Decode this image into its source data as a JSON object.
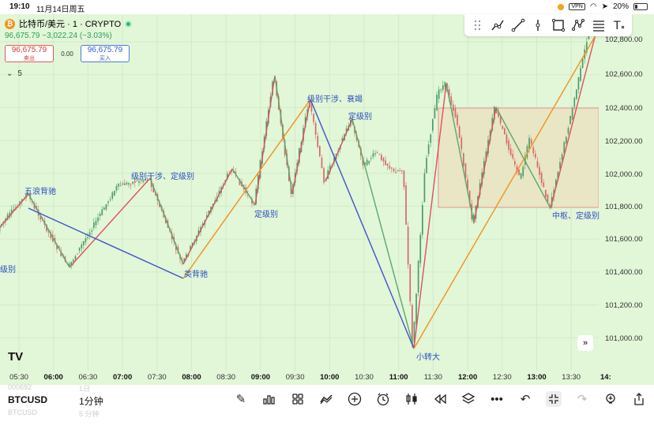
{
  "status": {
    "time": "19:10",
    "date": "11月14日周五",
    "battery": "20%"
  },
  "symbol": {
    "name": "比特币/美元 · 1 · CRYPTO",
    "coin_glyph": "₿",
    "price": "96,675.79",
    "change": "−3,022.24 (−3.03%)"
  },
  "trade": {
    "sell_price": "96,675.79",
    "sell_label": "卖出",
    "spread": "0.00",
    "buy_price": "96,675.79",
    "buy_label": "买入"
  },
  "collapse": {
    "icon": "chevron-down-icon",
    "count": "5"
  },
  "price_axis": [
    "102,800.00",
    "102,600.00",
    "102,400.00",
    "102,200.00",
    "102,000.00",
    "101,800.00",
    "101,600.00",
    "101,400.00",
    "101,200.00",
    "101,000.00"
  ],
  "time_axis": [
    {
      "t": "05:30",
      "bold": false
    },
    {
      "t": "06:00",
      "bold": true
    },
    {
      "t": "06:30",
      "bold": false
    },
    {
      "t": "07:00",
      "bold": true
    },
    {
      "t": "07:30",
      "bold": false
    },
    {
      "t": "08:00",
      "bold": true
    },
    {
      "t": "08:30",
      "bold": false
    },
    {
      "t": "09:00",
      "bold": true
    },
    {
      "t": "09:30",
      "bold": false
    },
    {
      "t": "10:00",
      "bold": true
    },
    {
      "t": "10:30",
      "bold": false
    },
    {
      "t": "11:00",
      "bold": true
    },
    {
      "t": "11:30",
      "bold": false
    },
    {
      "t": "12:00",
      "bold": true
    },
    {
      "t": "12:30",
      "bold": false
    },
    {
      "t": "13:00",
      "bold": true
    },
    {
      "t": "13:30",
      "bold": false
    },
    {
      "t": "14:",
      "bold": true
    }
  ],
  "annotations": {
    "wave5": "五浪背驰",
    "interf1": "级别干涉、定级别",
    "similar": "类背驰",
    "dingji1": "定级别",
    "interf2": "级别干涉、衰竭",
    "dingji2": "定级别",
    "small_turn": "小转大",
    "center": "中枢、定级别",
    "left_cut": "级别"
  },
  "bottom": {
    "symbol": "BTCUSD",
    "interval": "1分钟",
    "ghost_above_symbol": "000692",
    "ghost_below_symbol": "BTCUSD",
    "ghost_above_interval": "1日",
    "ghost_below_interval": "5 分钟"
  },
  "logo_text": "TV",
  "colors": {
    "background": "#e2f6d8",
    "red": "#e0505a",
    "green": "#5aa86a",
    "blue": "#3d55c8",
    "orange": "#f0921e",
    "box_fill": "#e8ebc8"
  }
}
